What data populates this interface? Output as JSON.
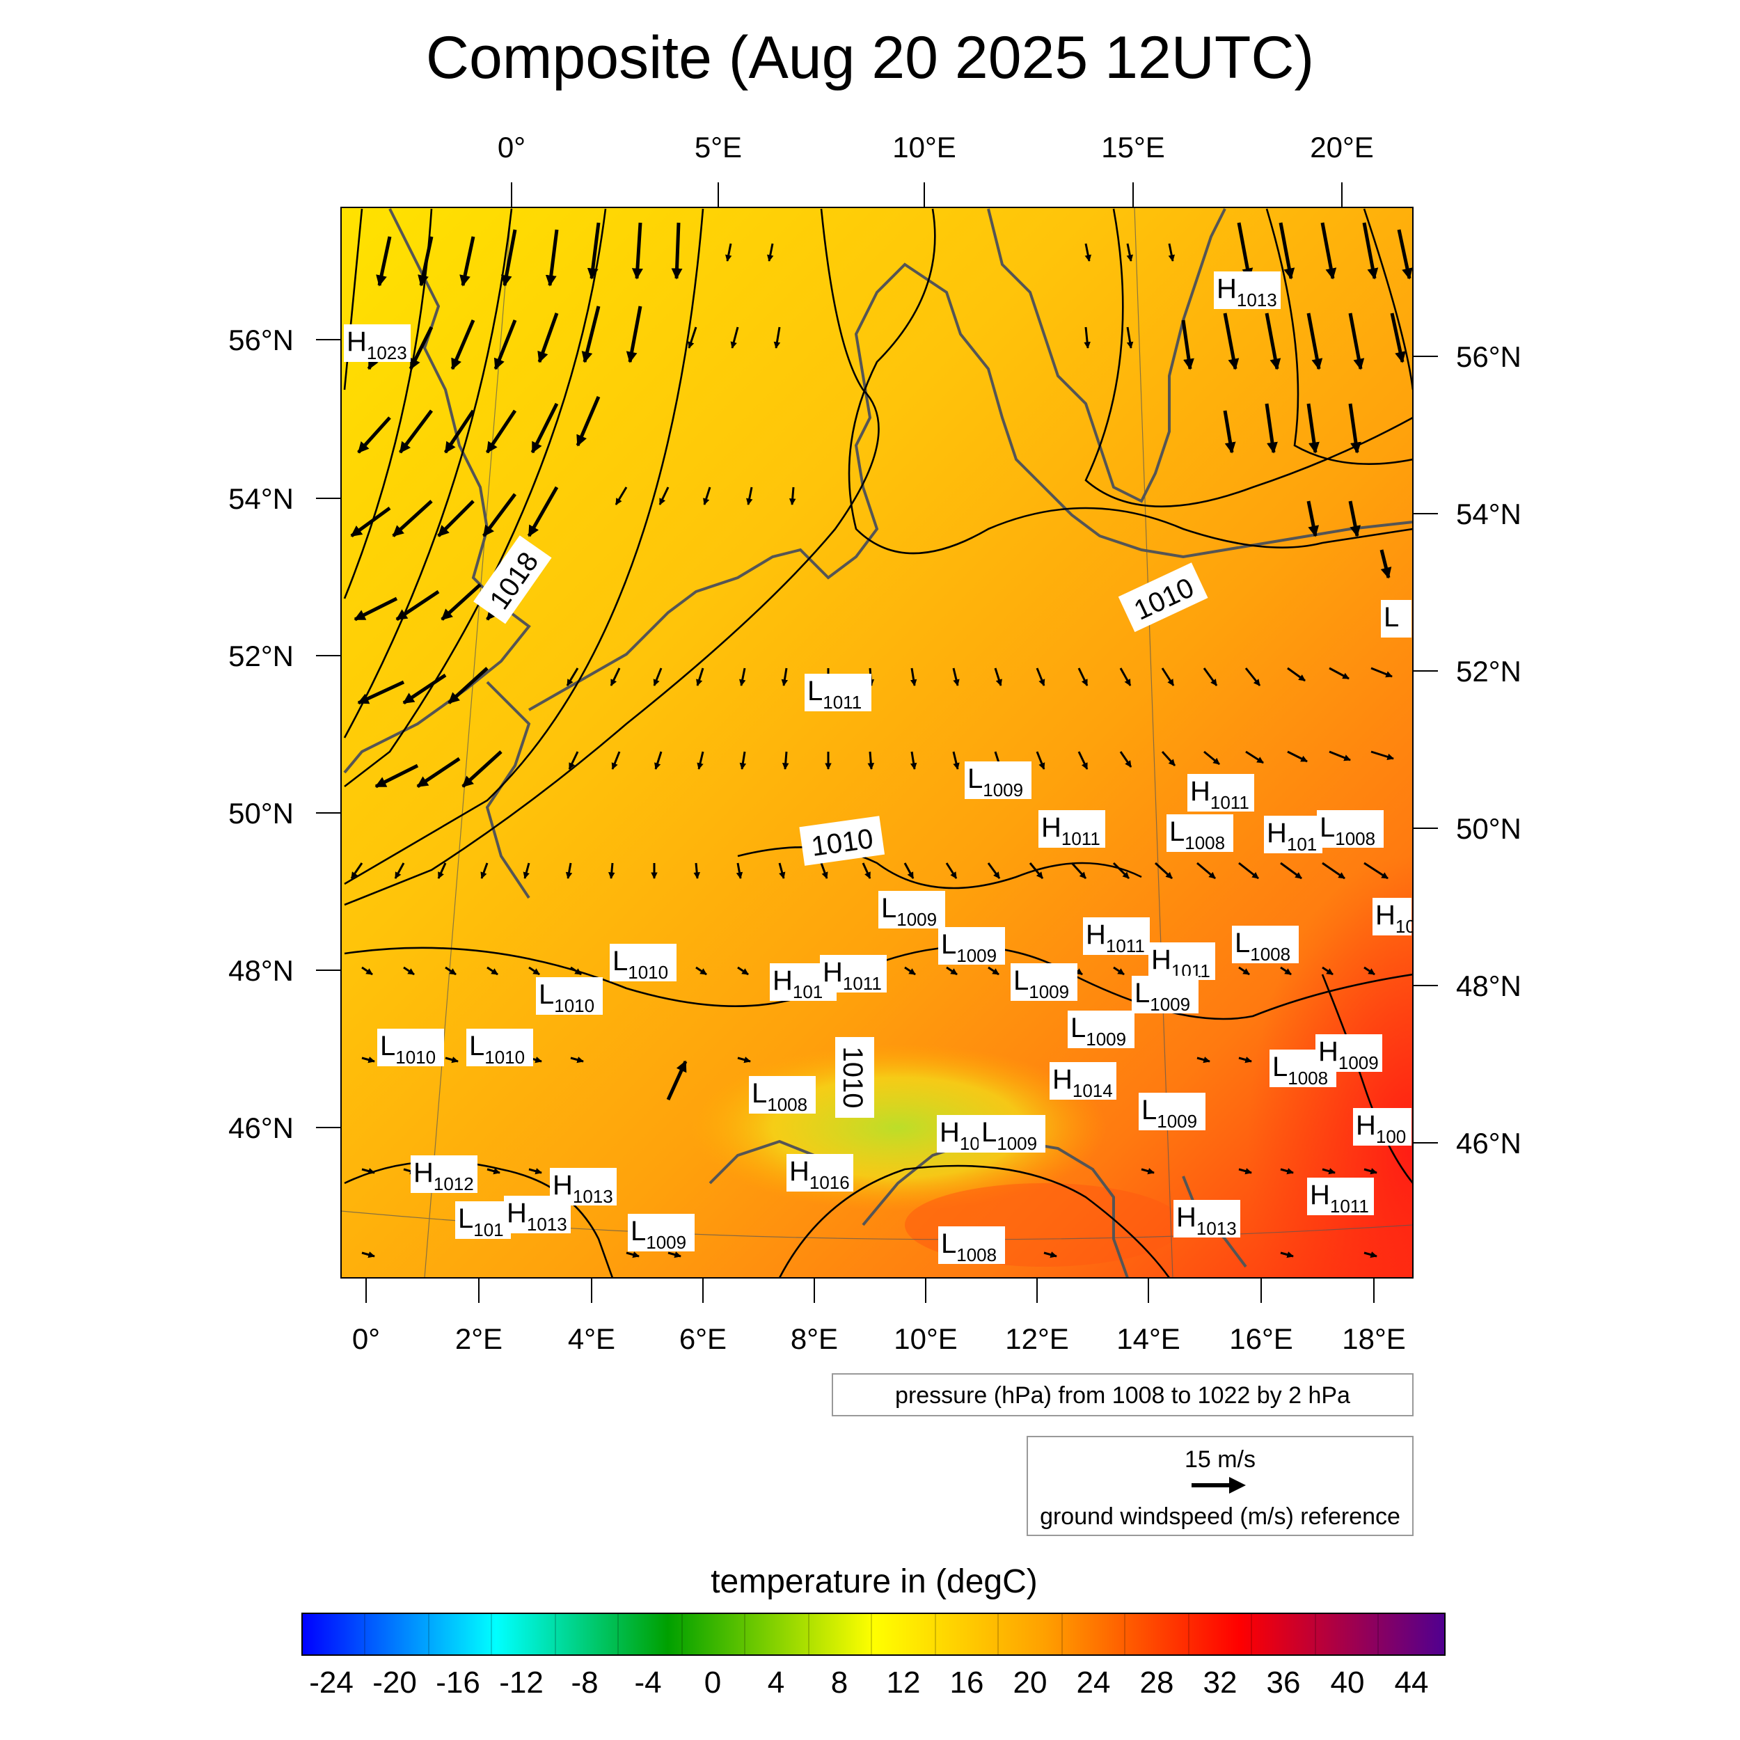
{
  "title": "Composite (Aug 20 2025 12UTC)",
  "top_lon_labels": [
    "0°",
    "5°E",
    "10°E",
    "15°E",
    "20°E"
  ],
  "bottom_lon_labels": [
    "0°",
    "2°E",
    "4°E",
    "6°E",
    "8°E",
    "10°E",
    "12°E",
    "14°E",
    "16°E",
    "18°E"
  ],
  "left_lat_labels": [
    "56°N",
    "54°N",
    "52°N",
    "50°N",
    "48°N",
    "46°N"
  ],
  "right_lat_labels": [
    "56°N",
    "54°N",
    "52°N",
    "50°N",
    "48°N",
    "46°N"
  ],
  "contour_labels": [
    "1018",
    "1010",
    "1010",
    "1010"
  ],
  "pressure_centers": [
    {
      "type": "H",
      "value": "1023"
    },
    {
      "type": "H",
      "value": "1013"
    },
    {
      "type": "L",
      "value": ""
    },
    {
      "type": "L",
      "value": "1011"
    },
    {
      "type": "L",
      "value": "1009"
    },
    {
      "type": "H",
      "value": "1011"
    },
    {
      "type": "H",
      "value": "1011"
    },
    {
      "type": "L",
      "value": "1008"
    },
    {
      "type": "H",
      "value": "101"
    },
    {
      "type": "L",
      "value": "1008"
    },
    {
      "type": "L",
      "value": "1009"
    },
    {
      "type": "H",
      "value": "1011"
    },
    {
      "type": "L",
      "value": "1009"
    },
    {
      "type": "L",
      "value": "1008"
    },
    {
      "type": "H",
      "value": "10"
    },
    {
      "type": "L",
      "value": "1010"
    },
    {
      "type": "L",
      "value": "1010"
    },
    {
      "type": "H",
      "value": "101"
    },
    {
      "type": "H",
      "value": "1011"
    },
    {
      "type": "L",
      "value": "1009"
    },
    {
      "type": "H",
      "value": "1011"
    },
    {
      "type": "L",
      "value": "1009"
    },
    {
      "type": "L",
      "value": "1009"
    },
    {
      "type": "L",
      "value": "1010"
    },
    {
      "type": "L",
      "value": "1010"
    },
    {
      "type": "L",
      "value": "1008"
    },
    {
      "type": "H",
      "value": "1014"
    },
    {
      "type": "L",
      "value": "1008"
    },
    {
      "type": "H",
      "value": "1009"
    },
    {
      "type": "L",
      "value": "1009"
    },
    {
      "type": "H",
      "value": "10"
    },
    {
      "type": "L",
      "value": "1009"
    },
    {
      "type": "H",
      "value": "100"
    },
    {
      "type": "H",
      "value": "1016"
    },
    {
      "type": "H",
      "value": "1012"
    },
    {
      "type": "H",
      "value": "1013"
    },
    {
      "type": "L",
      "value": "101"
    },
    {
      "type": "H",
      "value": "1013"
    },
    {
      "type": "L",
      "value": "1009"
    },
    {
      "type": "L",
      "value": "1008"
    },
    {
      "type": "H",
      "value": "1011"
    },
    {
      "type": "H",
      "value": "1013"
    }
  ],
  "pressure_legend": "pressure (hPa) from 1008 to 1022 by 2 hPa",
  "wind_legend": {
    "speed": "15 m/s",
    "label": "ground windspeed (m/s) reference"
  },
  "colorbar": {
    "title": "temperature in (degC)",
    "ticks": [
      "-24",
      "-20",
      "-16",
      "-12",
      "-8",
      "-4",
      "0",
      "4",
      "8",
      "12",
      "16",
      "20",
      "24",
      "28",
      "32",
      "36",
      "40",
      "44"
    ],
    "colors": [
      "#0000ff",
      "#00ffff",
      "#00a000",
      "#ffff00",
      "#ffa000",
      "#ff0000",
      "#500090"
    ]
  }
}
